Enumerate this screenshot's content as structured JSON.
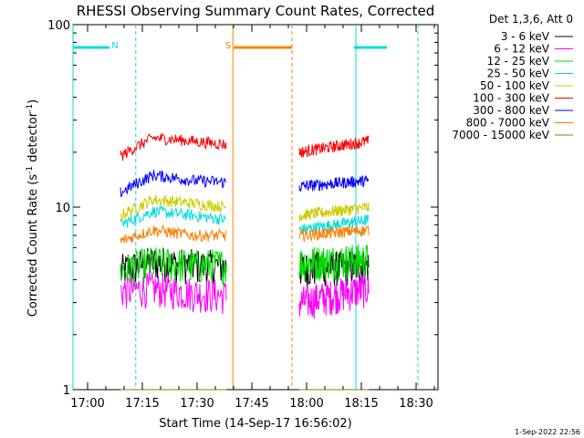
{
  "chart_data": {
    "type": "line",
    "title": "RHESSI Observing Summary Count Rates, Corrected",
    "xlabel": "Start Time (14-Sep-17 16:56:02)",
    "ylabel_main": "Corrected Count Rate (s",
    "ylabel_sup1": "-1",
    "ylabel_mid": " detector",
    "ylabel_sup2": "-1",
    "ylabel_end": ")",
    "yscale": "log",
    "ylim": [
      1,
      100
    ],
    "xlim_minutes": [
      0,
      100
    ],
    "x_ticks": [
      {
        "label": "17:00",
        "minute": 4
      },
      {
        "label": "17:15",
        "minute": 19
      },
      {
        "label": "17:30",
        "minute": 34
      },
      {
        "label": "17:45",
        "minute": 49
      },
      {
        "label": "18:00",
        "minute": 64
      },
      {
        "label": "18:15",
        "minute": 79
      },
      {
        "label": "18:30",
        "minute": 94
      }
    ],
    "y_ticks": [
      {
        "label": "1",
        "value": 1
      },
      {
        "label": "10",
        "value": 10
      },
      {
        "label": "100",
        "value": 100
      }
    ],
    "legend_position": "right",
    "legend_title": "Det 1,3,6, Att 0",
    "segments": [
      [
        13,
        42
      ],
      [
        62,
        81
      ]
    ],
    "series": [
      {
        "name": "3 - 6 keV",
        "color": "#000000",
        "values": [
          4.5,
          5.0,
          4.8,
          4.6,
          4.8
        ]
      },
      {
        "name": "6 - 12 keV",
        "color": "#ff00ff",
        "values": [
          3.5,
          3.6,
          3.4,
          3.0,
          3.6
        ]
      },
      {
        "name": "12 - 25 keV",
        "color": "#00dd00",
        "values": [
          4.5,
          5.0,
          4.8,
          5.0,
          5.2
        ]
      },
      {
        "name": "25 - 50 keV",
        "color": "#00dddd",
        "values": [
          8.0,
          9.5,
          9.0,
          7.5,
          8.5
        ]
      },
      {
        "name": "50 - 100 keV",
        "color": "#cccc00",
        "values": [
          9.0,
          11.0,
          10.5,
          9.0,
          10.0
        ]
      },
      {
        "name": "100 - 300 keV",
        "color": "#ff0000",
        "values": [
          19.0,
          24.0,
          23.0,
          20.0,
          23.0
        ]
      },
      {
        "name": "300 - 800 keV",
        "color": "#0000ff",
        "values": [
          12.0,
          15.0,
          14.0,
          13.0,
          14.0
        ]
      },
      {
        "name": "800 - 7000 keV",
        "color": "#ff8000",
        "values": [
          6.5,
          7.5,
          7.0,
          7.0,
          7.5
        ]
      },
      {
        "name": "7000 - 15000 keV",
        "color": "#808000",
        "values": [
          1.0,
          1.0,
          1.0,
          1.0,
          1.0
        ]
      }
    ],
    "series_time_points": [
      13,
      22,
      33,
      62,
      81
    ],
    "flag_lines": [
      {
        "flag": "N",
        "color": "#00dddd",
        "y_value": 75,
        "bars": [
          [
            0,
            10
          ]
        ],
        "start": 10,
        "ends": [
          0,
          10,
          77,
          86
        ]
      },
      {
        "flag": "S",
        "color": "#ff8000",
        "y_value": 75,
        "bars": [
          [
            44,
            60
          ]
        ],
        "start": 44,
        "ends": [
          43,
          60
        ]
      },
      {
        "flag": "",
        "color": "#00dddd",
        "y_value": 75,
        "bars": [
          [
            77,
            86
          ]
        ],
        "start": 77,
        "ends": [
          77,
          86
        ]
      }
    ]
  },
  "timestamp": "1-Sep-2022 22:56"
}
